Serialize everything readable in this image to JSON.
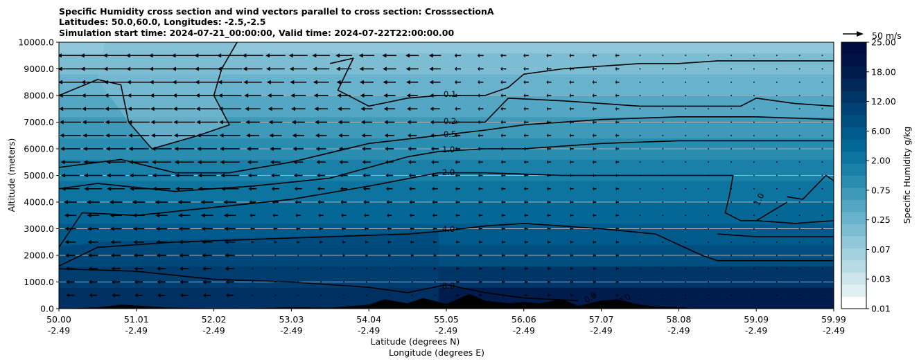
{
  "chart_data": {
    "type": "heatmap",
    "title_lines": [
      "Specific Humidity cross section and wind vectors parallel to cross section: CrosssectionA",
      "Latitudes: 50.0,60.0, Longitudes: -2.5,-2.5",
      "Simulation start time: 2024-07-21_00:00:00, Valid time: 2024-07-22T22:00:00.00"
    ],
    "ylabel": "Altitude (meters)",
    "xlabel_lines": [
      "Latitude (degrees N)",
      "Longitude (degrees E)"
    ],
    "ylim": [
      0,
      10000
    ],
    "y_ticks": [
      "0.0",
      "1000.0",
      "2000.0",
      "3000.0",
      "4000.0",
      "5000.0",
      "6000.0",
      "7000.0",
      "8000.0",
      "9000.0",
      "10000.0"
    ],
    "x_ticks_lat": [
      "50.00",
      "51.01",
      "52.02",
      "53.03",
      "54.04",
      "55.05",
      "56.06",
      "57.07",
      "58.08",
      "59.09",
      "59.99"
    ],
    "x_ticks_lon": [
      "-2.49",
      "-2.49",
      "-2.49",
      "-2.49",
      "-2.49",
      "-2.49",
      "-2.49",
      "-2.49",
      "-2.49",
      "-2.49",
      "-2.49"
    ],
    "grid": "horizontal",
    "colorbar": {
      "label": "Specific Humidity g/kg",
      "tick_labels": [
        "0.01",
        "0.03",
        "0.07",
        "0.25",
        "0.75",
        "2.00",
        "6.00",
        "12.00",
        "18.00",
        "25.00"
      ],
      "colors": [
        "#ffffff",
        "#e0eff2",
        "#cde6ec",
        "#b6dbe6",
        "#a3d1e0",
        "#90c7da",
        "#7dbdd4",
        "#69b2cd",
        "#54a6c5",
        "#3f9aba",
        "#2a8db0",
        "#1a80a8",
        "#0d739f",
        "#056796",
        "#015a8c",
        "#014e81",
        "#004275",
        "#003567",
        "#00295a",
        "#001c4d",
        "#001245",
        "#000c3f"
      ]
    },
    "wind_key": {
      "label": "50 m/s",
      "speed": 50
    },
    "contour_labels": [
      "0.1",
      "0.2",
      "0.5",
      "1.0",
      "2.0",
      "4.0",
      "8.0",
      "1.0",
      "0.0",
      "0.0"
    ],
    "contours": [
      {
        "level": "0.1",
        "points": [
          [
            0,
            8000
          ],
          [
            0.05,
            8600
          ],
          [
            0.08,
            8400
          ],
          [
            0.09,
            7000
          ],
          [
            0.12,
            6000
          ],
          [
            0.18,
            6500
          ],
          [
            0.22,
            6900
          ],
          [
            0.2,
            8000
          ],
          [
            0.21,
            9000
          ],
          [
            0.23,
            10000
          ]
        ]
      },
      {
        "level": "0.1",
        "points": [
          [
            0.35,
            9200
          ],
          [
            0.38,
            9400
          ],
          [
            0.36,
            8200
          ],
          [
            0.4,
            7600
          ],
          [
            0.45,
            7900
          ],
          [
            0.49,
            8000
          ],
          [
            0.55,
            8000
          ],
          [
            0.58,
            8300
          ],
          [
            0.6,
            8800
          ],
          [
            0.65,
            9000
          ],
          [
            0.75,
            9200
          ],
          [
            0.8,
            9200
          ],
          [
            0.85,
            9300
          ],
          [
            0.9,
            9300
          ],
          [
            1.0,
            9300
          ]
        ]
      },
      {
        "level": "0.2",
        "points": [
          [
            0.49,
            7000
          ],
          [
            0.55,
            7000
          ],
          [
            0.58,
            7900
          ],
          [
            0.65,
            7800
          ],
          [
            0.75,
            7600
          ],
          [
            0.88,
            7600
          ],
          [
            0.9,
            7900
          ],
          [
            0.95,
            7700
          ],
          [
            1.0,
            7600
          ]
        ]
      },
      {
        "level": "0.5",
        "points": [
          [
            0,
            5300
          ],
          [
            0.08,
            5600
          ],
          [
            0.15,
            5100
          ],
          [
            0.22,
            5100
          ],
          [
            0.3,
            5500
          ],
          [
            0.4,
            6200
          ],
          [
            0.49,
            6500
          ],
          [
            0.55,
            6700
          ],
          [
            0.6,
            6900
          ],
          [
            0.7,
            7100
          ],
          [
            0.8,
            7200
          ],
          [
            0.9,
            7200
          ],
          [
            1.0,
            7100
          ]
        ]
      },
      {
        "level": "1.0",
        "points": [
          [
            0,
            4500
          ],
          [
            0.05,
            4700
          ],
          [
            0.15,
            4400
          ],
          [
            0.25,
            4600
          ],
          [
            0.35,
            4900
          ],
          [
            0.45,
            5700
          ],
          [
            0.49,
            5900
          ],
          [
            0.55,
            6000
          ],
          [
            0.6,
            6000
          ],
          [
            0.7,
            6200
          ],
          [
            0.8,
            6300
          ],
          [
            0.9,
            6300
          ],
          [
            1.0,
            6300
          ]
        ]
      },
      {
        "level": "1.0",
        "points": [
          [
            0.94,
            4000
          ],
          [
            0.9,
            3300
          ],
          [
            0.95,
            3200
          ],
          [
            1.0,
            3300
          ]
        ]
      },
      {
        "level": "1.0",
        "points": [
          [
            0.94,
            4200
          ],
          [
            0.96,
            4100
          ],
          [
            0.99,
            5000
          ],
          [
            1.0,
            4800
          ]
        ]
      },
      {
        "level": "2.0",
        "points": [
          [
            0,
            2300
          ],
          [
            0.03,
            3600
          ],
          [
            0.1,
            3500
          ],
          [
            0.2,
            3800
          ],
          [
            0.3,
            4100
          ],
          [
            0.4,
            4600
          ],
          [
            0.49,
            5100
          ],
          [
            0.55,
            5100
          ],
          [
            0.65,
            5000
          ],
          [
            0.75,
            5000
          ],
          [
            0.87,
            5000
          ],
          [
            0.865,
            4200
          ],
          [
            0.86,
            3600
          ],
          [
            0.88,
            3300
          ],
          [
            0.9,
            3300
          ]
        ]
      },
      {
        "level": "4.0",
        "points": [
          [
            0,
            1600
          ],
          [
            0.05,
            2300
          ],
          [
            0.15,
            2500
          ],
          [
            0.25,
            2600
          ],
          [
            0.35,
            2700
          ],
          [
            0.45,
            2800
          ],
          [
            0.49,
            2900
          ],
          [
            0.55,
            3100
          ],
          [
            0.6,
            3200
          ],
          [
            0.7,
            3000
          ],
          [
            0.77,
            2800
          ],
          [
            0.8,
            2400
          ],
          [
            0.83,
            2000
          ],
          [
            0.85,
            1800
          ],
          [
            0.9,
            1800
          ],
          [
            1.0,
            1800
          ]
        ]
      },
      {
        "level": "4.0",
        "points": [
          [
            0.85,
            2800
          ],
          [
            0.9,
            2700
          ],
          [
            1.0,
            2700
          ]
        ]
      },
      {
        "level": "8.0",
        "points": [
          [
            0,
            1500
          ],
          [
            0.1,
            1400
          ],
          [
            0.2,
            1100
          ],
          [
            0.3,
            1000
          ],
          [
            0.4,
            800
          ],
          [
            0.45,
            600
          ],
          [
            0.5,
            900
          ],
          [
            0.55,
            600
          ],
          [
            0.6,
            400
          ],
          [
            0.67,
            300
          ]
        ]
      }
    ],
    "terrain": [
      [
        0,
        0
      ],
      [
        0.05,
        50
      ],
      [
        0.08,
        150
      ],
      [
        0.1,
        120
      ],
      [
        0.14,
        40
      ],
      [
        0.2,
        20
      ],
      [
        0.25,
        10
      ],
      [
        0.3,
        60
      ],
      [
        0.35,
        30
      ],
      [
        0.4,
        150
      ],
      [
        0.42,
        350
      ],
      [
        0.45,
        200
      ],
      [
        0.47,
        400
      ],
      [
        0.5,
        180
      ],
      [
        0.53,
        550
      ],
      [
        0.55,
        300
      ],
      [
        0.58,
        200
      ],
      [
        0.6,
        250
      ],
      [
        0.62,
        200
      ],
      [
        0.65,
        350
      ],
      [
        0.67,
        100
      ],
      [
        0.7,
        300
      ],
      [
        0.72,
        350
      ],
      [
        0.75,
        150
      ],
      [
        0.77,
        80
      ],
      [
        0.8,
        50
      ],
      [
        0.83,
        0
      ],
      [
        1.0,
        0
      ]
    ]
  }
}
